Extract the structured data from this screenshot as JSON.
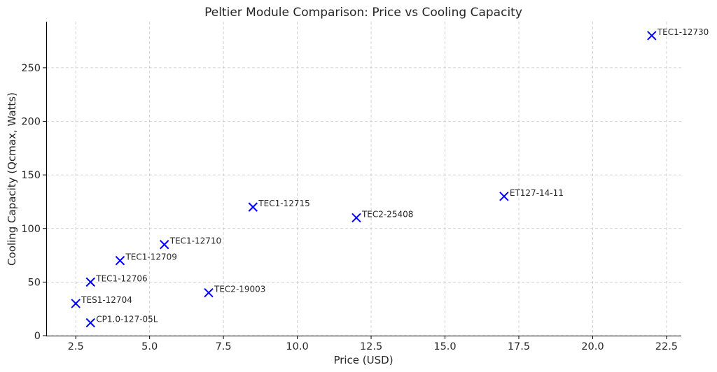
{
  "chart_data": {
    "type": "scatter",
    "title": "Peltier Module Comparison: Price vs Cooling Capacity",
    "xlabel": "Price (USD)",
    "ylabel": "Cooling Capacity (Qcmax, Watts)",
    "xlim": [
      1.5,
      23.0
    ],
    "ylim": [
      0,
      293
    ],
    "xticks": [
      2.5,
      5.0,
      7.5,
      10.0,
      12.5,
      15.0,
      17.5,
      20.0,
      22.5
    ],
    "xtick_labels": [
      "2.5",
      "5.0",
      "7.5",
      "10.0",
      "12.5",
      "15.0",
      "17.5",
      "20.0",
      "22.5"
    ],
    "yticks": [
      0,
      50,
      100,
      150,
      200,
      250
    ],
    "ytick_labels": [
      "0",
      "50",
      "100",
      "150",
      "200",
      "250"
    ],
    "grid": true,
    "marker": "x",
    "color": "#0000ff",
    "points": [
      {
        "label": "TES1-12704",
        "x": 2.5,
        "y": 30
      },
      {
        "label": "CP1.0-127-05L",
        "x": 3.0,
        "y": 12
      },
      {
        "label": "TEC1-12706",
        "x": 3.0,
        "y": 50
      },
      {
        "label": "TEC1-12709",
        "x": 4.0,
        "y": 70
      },
      {
        "label": "TEC1-12710",
        "x": 5.5,
        "y": 85
      },
      {
        "label": "TEC2-19003",
        "x": 7.0,
        "y": 40
      },
      {
        "label": "TEC1-12715",
        "x": 8.5,
        "y": 120
      },
      {
        "label": "TEC2-25408",
        "x": 12.0,
        "y": 110
      },
      {
        "label": "ET127-14-11",
        "x": 17.0,
        "y": 130
      },
      {
        "label": "TEC1-12730",
        "x": 22.0,
        "y": 280
      }
    ]
  }
}
